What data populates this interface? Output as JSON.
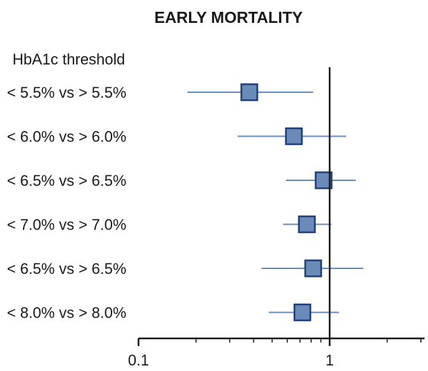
{
  "chart_data": {
    "type": "forest",
    "title": "EARLY MORTALITY",
    "row_heading": "HbA1c threshold",
    "x_scale": "log",
    "xlim": [
      0.1,
      3.2
    ],
    "reference_line": 1,
    "x_ticks": [
      {
        "value": 0.1,
        "label": "0.1"
      },
      {
        "value": 1,
        "label": "1"
      }
    ],
    "rows": [
      {
        "label": "< 5.5% vs > 5.5%",
        "estimate": 0.38,
        "lower": 0.18,
        "upper": 0.82
      },
      {
        "label": "< 6.0% vs > 6.0%",
        "estimate": 0.65,
        "lower": 0.33,
        "upper": 1.22
      },
      {
        "label": "< 6.5% vs > 6.5%",
        "estimate": 0.93,
        "lower": 0.59,
        "upper": 1.37
      },
      {
        "label": "< 7.0% vs > 7.0%",
        "estimate": 0.76,
        "lower": 0.57,
        "upper": 1.02
      },
      {
        "label": "< 6.5% vs > 6.5%",
        "estimate": 0.82,
        "lower": 0.44,
        "upper": 1.5
      },
      {
        "label": "< 8.0% vs > 8.0%",
        "estimate": 0.72,
        "lower": 0.48,
        "upper": 1.12
      }
    ],
    "colors": {
      "marker_fill": "#6a8ab8",
      "marker_stroke": "#1f3f78",
      "ci_line": "#6a8ab8",
      "axis": "#1a1a1a"
    }
  }
}
